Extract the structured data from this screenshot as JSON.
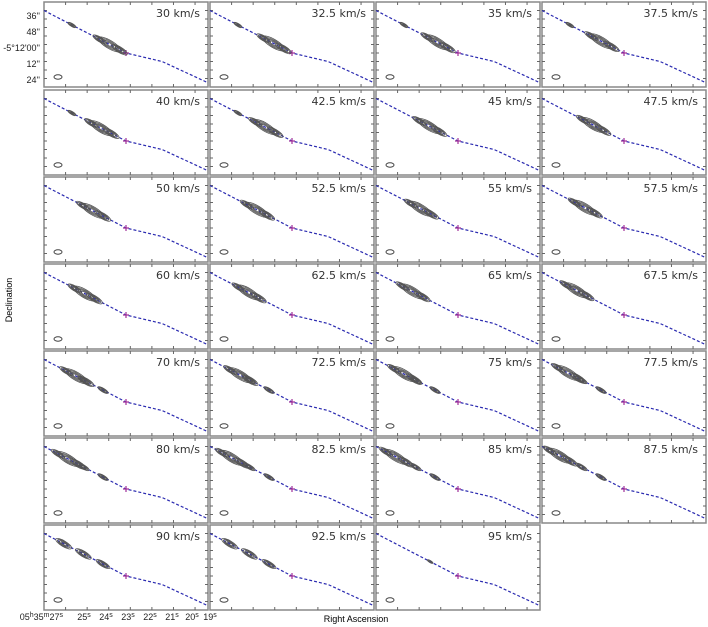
{
  "chart_data": {
    "type": "contour",
    "xlabel": "Right Ascension",
    "ylabel": "Declination",
    "x_tick_labels": [
      "05h35m27s",
      "25s",
      "24s",
      "23s",
      "22s",
      "21s",
      "20s",
      "19s"
    ],
    "x_tick_parts": [
      {
        "a": "05",
        "b": "h",
        "c": "35",
        "d": "m",
        "e": "27",
        "f": "s"
      },
      {
        "e": "25",
        "f": "s"
      },
      {
        "e": "24",
        "f": "s"
      },
      {
        "e": "23",
        "f": "s"
      },
      {
        "e": "22",
        "f": "s"
      },
      {
        "e": "21",
        "f": "s"
      },
      {
        "e": "20",
        "f": "s"
      },
      {
        "e": "19",
        "f": "s"
      }
    ],
    "y_tick_labels": [
      "36''",
      "48''",
      "-5°12'00''",
      "12''",
      "24''"
    ],
    "panels": [
      "30 km/s",
      "32.5 km/s",
      "35 km/s",
      "37.5 km/s",
      "40 km/s",
      "42.5 km/s",
      "45 km/s",
      "47.5 km/s",
      "50 km/s",
      "52.5 km/s",
      "55 km/s",
      "57.5 km/s",
      "60 km/s",
      "62.5 km/s",
      "65 km/s",
      "67.5 km/s",
      "70 km/s",
      "72.5 km/s",
      "75 km/s",
      "77.5 km/s",
      "80 km/s",
      "82.5 km/s",
      "85 km/s",
      "87.5 km/s",
      "90 km/s",
      "92.5 km/s",
      "95 km/s"
    ],
    "colors": {
      "contour": "#555555",
      "axis_line": "#2a2ab0",
      "marker": "#a0309a",
      "frame": "#888888"
    }
  }
}
